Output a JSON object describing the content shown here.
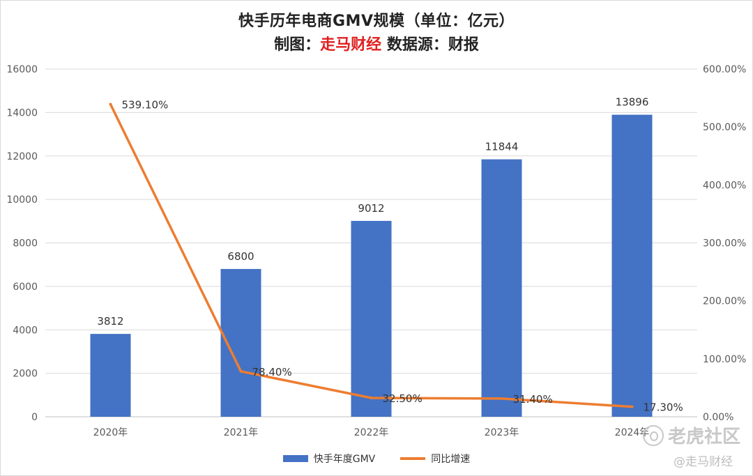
{
  "header": {
    "title": "快手历年电商GMV规模（单位：亿元）",
    "subtitle_prefix": "制图：",
    "subtitle_brand": "走马财经",
    "subtitle_suffix": " 数据源：财报"
  },
  "chart_data": {
    "type": "bar",
    "categories": [
      "2020年",
      "2021年",
      "2022年",
      "2023年",
      "2024年"
    ],
    "series": [
      {
        "name": "快手年度GMV",
        "type": "bar",
        "axis": "left",
        "values": [
          3812,
          6800,
          9012,
          11844,
          13896
        ],
        "labels": [
          "3812",
          "6800",
          "9012",
          "11844",
          "13896"
        ]
      },
      {
        "name": "同比增速",
        "type": "line",
        "axis": "right",
        "values": [
          539.1,
          78.4,
          32.5,
          31.4,
          17.3
        ],
        "labels": [
          "539.10%",
          "78.40%",
          "32.50%",
          "31.40%",
          "17.30%"
        ]
      }
    ],
    "y_left": {
      "min": 0,
      "max": 16000,
      "step": 2000,
      "ticks": [
        "0",
        "2000",
        "4000",
        "6000",
        "8000",
        "10000",
        "12000",
        "14000",
        "16000"
      ]
    },
    "y_right": {
      "min": 0,
      "max": 600,
      "step": 100,
      "ticks": [
        "0.00%",
        "100.00%",
        "200.00%",
        "300.00%",
        "400.00%",
        "500.00%",
        "600.00%"
      ]
    },
    "grid": true,
    "legend_position": "bottom",
    "colors": {
      "bar": "#4472c4",
      "line": "#ed7d31",
      "grid": "#d9d9d9"
    }
  },
  "watermarks": {
    "site": "老虎社区",
    "handle": "@走马财经"
  }
}
